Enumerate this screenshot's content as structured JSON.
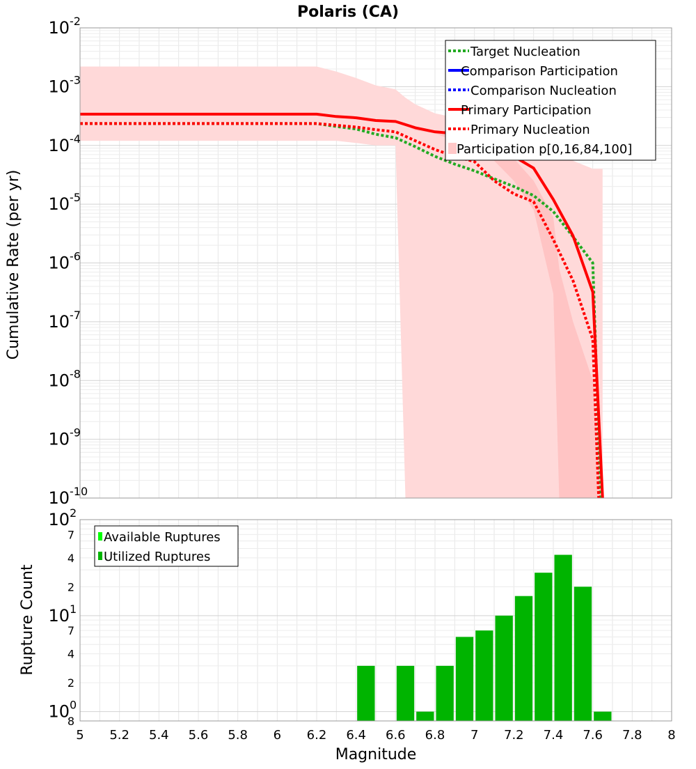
{
  "chart_data": [
    {
      "type": "line",
      "title": "Polaris (CA)",
      "ylabel": "Cumulative Rate (per yr)",
      "xlabel": "",
      "xlim": [
        5,
        8
      ],
      "ylim": [
        1e-10,
        0.01
      ],
      "yscale": "log",
      "grid": true,
      "legend_position": "top-right",
      "y_tick_bases": [
        "10",
        "10",
        "10",
        "10",
        "10",
        "10",
        "10",
        "10",
        "10"
      ],
      "y_tick_exponents": [
        "-10",
        "-9",
        "-8",
        "-7",
        "-6",
        "-5",
        "-4",
        "-3",
        "-2"
      ],
      "y_tick_values": [
        1e-10,
        1e-09,
        1e-08,
        1e-07,
        1e-06,
        1e-05,
        0.0001,
        0.001,
        0.01
      ],
      "legend": [
        {
          "label": "Target Nucleation",
          "color": "#22aa22",
          "style": "dotted"
        },
        {
          "label": "Comparison Participation",
          "color": "#0000ff",
          "style": "solid"
        },
        {
          "label": "Comparison Nucleation",
          "color": "#0000ff",
          "style": "dotted"
        },
        {
          "label": "Primary Participation",
          "color": "#ff0000",
          "style": "solid"
        },
        {
          "label": "Primary Nucleation",
          "color": "#ff0000",
          "style": "dotted"
        },
        {
          "label": "Participation p[0,16,84,100]",
          "color": "#ffc8c8",
          "style": "band"
        }
      ],
      "series": [
        {
          "name": "Primary Participation",
          "color": "#ff0000",
          "style": "solid",
          "x": [
            5.0,
            5.1,
            5.2,
            5.3,
            5.4,
            5.5,
            5.6,
            5.7,
            5.8,
            5.9,
            6.0,
            6.1,
            6.2,
            6.3,
            6.4,
            6.5,
            6.6,
            6.7,
            6.8,
            6.9,
            7.0,
            7.1,
            7.2,
            7.3,
            7.4,
            7.5,
            7.6,
            7.65
          ],
          "y": [
            0.00034,
            0.00034,
            0.00034,
            0.00034,
            0.00034,
            0.00034,
            0.00034,
            0.00034,
            0.00034,
            0.00034,
            0.00034,
            0.00034,
            0.00034,
            0.00031,
            0.000295,
            0.000265,
            0.000255,
            0.0002,
            0.00017,
            0.00016,
            0.000125,
            9e-05,
            6.5e-05,
            4.1e-05,
            1.2e-05,
            2.9e-06,
            3.2e-07,
            1e-10
          ]
        },
        {
          "name": "Primary Nucleation",
          "color": "#ff0000",
          "style": "dotted",
          "x": [
            5.0,
            5.1,
            5.2,
            5.3,
            5.4,
            5.5,
            5.6,
            5.7,
            5.8,
            5.9,
            6.0,
            6.1,
            6.2,
            6.3,
            6.4,
            6.5,
            6.6,
            6.7,
            6.8,
            6.9,
            7.0,
            7.1,
            7.2,
            7.3,
            7.4,
            7.5,
            7.6,
            7.63
          ],
          "y": [
            0.000235,
            0.000235,
            0.000235,
            0.000235,
            0.000235,
            0.000235,
            0.000235,
            0.000235,
            0.000235,
            0.000235,
            0.000235,
            0.000235,
            0.000235,
            0.00022,
            0.000205,
            0.000185,
            0.00017,
            0.00012,
            8.5e-05,
            6.5e-05,
            5.3e-05,
            2.5e-05,
            1.5e-05,
            1.1e-05,
            2.5e-06,
            5e-07,
            5e-08,
            1e-10
          ]
        },
        {
          "name": "Target Nucleation",
          "color": "#22aa22",
          "style": "dotted",
          "x": [
            5.0,
            5.1,
            5.2,
            5.3,
            5.4,
            5.5,
            5.6,
            5.7,
            5.8,
            5.9,
            6.0,
            6.1,
            6.2,
            6.3,
            6.4,
            6.5,
            6.6,
            6.7,
            6.8,
            6.9,
            7.0,
            7.1,
            7.2,
            7.3,
            7.4,
            7.5,
            7.6,
            7.64
          ],
          "y": [
            0.000235,
            0.000235,
            0.000235,
            0.000235,
            0.000235,
            0.000235,
            0.000235,
            0.000235,
            0.000235,
            0.000235,
            0.000235,
            0.000235,
            0.000235,
            0.00021,
            0.00019,
            0.000155,
            0.000135,
            9.5e-05,
            6.5e-05,
            4.8e-05,
            3.7e-05,
            2.7e-05,
            2e-05,
            1.4e-05,
            7.5e-06,
            2.8e-06,
            1e-06,
            1e-10
          ]
        }
      ],
      "band": {
        "name": "Participation p[0,16,84,100]",
        "x": [
          5.0,
          5.1,
          5.2,
          5.3,
          5.4,
          5.5,
          5.6,
          5.7,
          5.8,
          5.9,
          6.0,
          6.1,
          6.2,
          6.3,
          6.4,
          6.5,
          6.6,
          6.65,
          6.7,
          6.8,
          6.9,
          7.0,
          7.1,
          7.2,
          7.3,
          7.4,
          7.43,
          7.5,
          7.6,
          7.65
        ],
        "low": [
          0.00012,
          0.00012,
          0.00012,
          0.00012,
          0.00012,
          0.00012,
          0.00012,
          0.00012,
          0.00012,
          0.00012,
          0.00012,
          0.00012,
          0.00012,
          0.00012,
          0.00011,
          0.0001,
          0.0001,
          1e-10,
          1e-10,
          1e-10,
          1e-10,
          1e-10,
          1e-10,
          1e-10,
          1e-10,
          1e-10,
          1e-10,
          1e-10,
          1e-10,
          1e-10
        ],
        "high": [
          0.0022,
          0.0022,
          0.0022,
          0.0022,
          0.0022,
          0.0022,
          0.0022,
          0.0022,
          0.0022,
          0.0022,
          0.0022,
          0.0022,
          0.0022,
          0.0018,
          0.0014,
          0.00105,
          0.0009,
          0.00065,
          0.0005,
          0.00035,
          0.0003,
          0.00028,
          0.00024,
          0.00017,
          0.000135,
          8e-05,
          6.5e-05,
          5.5e-05,
          4e-05,
          4e-05
        ],
        "inner_low": [
          0.00034,
          0.00034,
          0.00034,
          0.00034,
          0.00034,
          0.00034,
          0.00034,
          0.00034,
          0.00034,
          0.00034,
          0.00034,
          0.00034,
          0.00034,
          0.00031,
          0.000295,
          0.000265,
          0.000255,
          0.00022,
          0.00018,
          0.00016,
          0.00012,
          9e-05,
          5.5e-05,
          2.5e-05,
          8e-06,
          3e-07,
          1e-10,
          1e-10,
          1e-10,
          1e-10
        ],
        "inner_high": [
          0.00034,
          0.00034,
          0.00034,
          0.00034,
          0.00034,
          0.00034,
          0.00034,
          0.00034,
          0.00034,
          0.00034,
          0.00034,
          0.00034,
          0.00034,
          0.00031,
          0.000295,
          0.000265,
          0.000255,
          0.00022,
          0.00019,
          0.00017,
          0.00014,
          0.00011,
          8.5e-05,
          6e-05,
          2.5e-05,
          6e-06,
          8e-07,
          1e-07,
          1e-08,
          1e-10
        ]
      }
    },
    {
      "type": "bar",
      "ylabel": "Rupture Count",
      "xlabel": "Magnitude",
      "xlim": [
        5,
        8
      ],
      "ylim": [
        0.8,
        100
      ],
      "yscale": "log",
      "grid": true,
      "legend_position": "top-left",
      "x_ticks": [
        "5",
        "5.2",
        "5.4",
        "5.6",
        "5.8",
        "6",
        "6.2",
        "6.4",
        "6.6",
        "6.8",
        "7",
        "7.2",
        "7.4",
        "7.6",
        "7.8",
        "8"
      ],
      "y_ticks": [
        {
          "value": 0.8,
          "base": "8",
          "exp": ""
        },
        {
          "value": 1,
          "base": "10",
          "exp": "0"
        },
        {
          "value": 2,
          "base": "2",
          "exp": ""
        },
        {
          "value": 4,
          "base": "4",
          "exp": ""
        },
        {
          "value": 7,
          "base": "7",
          "exp": ""
        },
        {
          "value": 10,
          "base": "10",
          "exp": "1"
        },
        {
          "value": 20,
          "base": "2",
          "exp": ""
        },
        {
          "value": 40,
          "base": "4",
          "exp": ""
        },
        {
          "value": 70,
          "base": "7",
          "exp": ""
        },
        {
          "value": 100,
          "base": "10",
          "exp": "2"
        }
      ],
      "legend": [
        {
          "label": "Available Ruptures",
          "color": "#00ff00"
        },
        {
          "label": "Utilized Ruptures",
          "color": "#00b400"
        }
      ],
      "bar_width": 0.1,
      "bars": [
        {
          "x": 6.45,
          "value": 3
        },
        {
          "x": 6.65,
          "value": 3
        },
        {
          "x": 6.75,
          "value": 1
        },
        {
          "x": 6.85,
          "value": 3
        },
        {
          "x": 6.95,
          "value": 6
        },
        {
          "x": 7.05,
          "value": 7
        },
        {
          "x": 7.15,
          "value": 10
        },
        {
          "x": 7.25,
          "value": 16
        },
        {
          "x": 7.35,
          "value": 28
        },
        {
          "x": 7.45,
          "value": 43
        },
        {
          "x": 7.55,
          "value": 20
        },
        {
          "x": 7.65,
          "value": 1
        }
      ]
    }
  ]
}
